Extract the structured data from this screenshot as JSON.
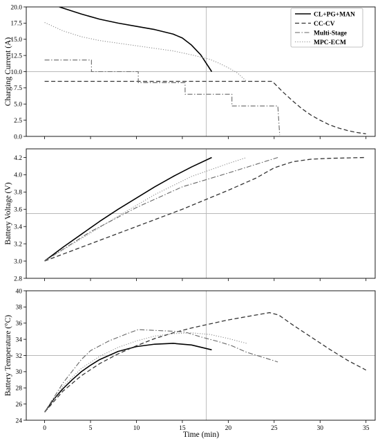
{
  "chart_data": {
    "type": "line",
    "xlabel": "Time (min)",
    "xlim": [
      -2,
      36
    ],
    "xticks": [
      0,
      5,
      10,
      15,
      20,
      25,
      30,
      35
    ],
    "reference_lines": {
      "x": 17.6
    },
    "legend": {
      "placement": "top-right",
      "entries": [
        {
          "name": "CL+PG+MAN",
          "style": "solid"
        },
        {
          "name": "CC-CV",
          "style": "dashed"
        },
        {
          "name": "Multi-Stage",
          "style": "dashdot"
        },
        {
          "name": "MPC-ECM",
          "style": "dotted"
        }
      ]
    },
    "panels": [
      {
        "id": "current",
        "ylabel": "Charging Current (A)",
        "ylim": [
          0,
          20
        ],
        "yticks": [
          0.0,
          2.5,
          5.0,
          7.5,
          10.0,
          12.5,
          15.0,
          17.5,
          20.0
        ],
        "ytick_decimals": 1,
        "reference_lines": {
          "y": 10.0
        },
        "series": [
          {
            "name": "CL+PG+MAN",
            "x": [
              1.6,
              4,
              6,
              8,
              10,
              12,
              14,
              15,
              16,
              17,
              18.2
            ],
            "y": [
              20.0,
              18.9,
              18.1,
              17.5,
              17.0,
              16.5,
              15.8,
              15.2,
              14.1,
              12.6,
              10.0
            ]
          },
          {
            "name": "CC-CV",
            "x": [
              0,
              5,
              10,
              15,
              20,
              24.8,
              25.5,
              26,
              27,
              28,
              29,
              30,
              31,
              32,
              33,
              34,
              35
            ],
            "y": [
              8.5,
              8.5,
              8.5,
              8.5,
              8.5,
              8.5,
              7.5,
              6.8,
              5.5,
              4.3,
              3.3,
              2.5,
              1.8,
              1.3,
              0.9,
              0.6,
              0.4
            ]
          },
          {
            "name": "Multi-Stage",
            "x": [
              0,
              5.1,
              5.1,
              10.2,
              10.2,
              15.3,
              15.3,
              20.4,
              20.4,
              25.4,
              25.6
            ],
            "y": [
              11.8,
              11.8,
              10.0,
              10.0,
              8.3,
              8.3,
              6.5,
              6.5,
              4.7,
              4.7,
              0.2
            ]
          },
          {
            "name": "MPC-ECM",
            "x": [
              0,
              2,
              4,
              6,
              8,
              10,
              12,
              14,
              16,
              18,
              19,
              20,
              21,
              22
            ],
            "y": [
              17.6,
              16.3,
              15.4,
              14.8,
              14.4,
              14.0,
              13.6,
              13.2,
              12.6,
              11.9,
              11.3,
              10.6,
              9.8,
              8.5
            ]
          }
        ]
      },
      {
        "id": "voltage",
        "ylabel": "Battery Voltage (V)",
        "ylim": [
          2.8,
          4.3
        ],
        "yticks": [
          2.8,
          3.0,
          3.2,
          3.4,
          3.6,
          3.8,
          4.0,
          4.2
        ],
        "ytick_decimals": 1,
        "reference_lines": {
          "y": 3.55
        },
        "series": [
          {
            "name": "CL+PG+MAN",
            "x": [
              0,
              2,
              4,
              6,
              8,
              10,
              12,
              14,
              16,
              18.2
            ],
            "y": [
              3.0,
              3.16,
              3.31,
              3.46,
              3.6,
              3.73,
              3.86,
              3.98,
              4.09,
              4.2
            ]
          },
          {
            "name": "CC-CV",
            "x": [
              0,
              5,
              10,
              15,
              20,
              23,
              25,
              27,
              29,
              31,
              33,
              35
            ],
            "y": [
              3.0,
              3.2,
              3.4,
              3.6,
              3.82,
              3.96,
              4.08,
              4.15,
              4.18,
              4.19,
              4.195,
              4.2
            ]
          },
          {
            "name": "Multi-Stage",
            "x": [
              0,
              5,
              10,
              15,
              20,
              25.4
            ],
            "y": [
              3.0,
              3.34,
              3.62,
              3.86,
              4.02,
              4.2
            ]
          },
          {
            "name": "MPC-ECM",
            "x": [
              0,
              4,
              8,
              12,
              16,
              20,
              22
            ],
            "y": [
              3.0,
              3.26,
              3.52,
              3.77,
              3.98,
              4.13,
              4.2
            ]
          }
        ]
      },
      {
        "id": "temperature",
        "ylabel": "Battery Temperature (°C)",
        "ylim": [
          24,
          40
        ],
        "yticks": [
          24,
          26,
          28,
          30,
          32,
          34,
          36,
          38,
          40
        ],
        "ytick_decimals": 0,
        "reference_lines": {
          "y": 32
        },
        "series": [
          {
            "name": "CL+PG+MAN",
            "x": [
              0,
              1,
              2,
              3,
              4,
              5,
              6,
              8,
              10,
              12,
              14,
              16,
              18.2
            ],
            "y": [
              25.0,
              26.6,
              27.9,
              29.0,
              30.0,
              30.8,
              31.5,
              32.5,
              33.1,
              33.4,
              33.5,
              33.3,
              32.7
            ]
          },
          {
            "name": "CC-CV",
            "x": [
              0,
              2,
              4,
              6,
              8,
              10,
              12,
              14,
              16,
              18,
              20,
              22,
              24.5,
              25.5,
              27,
              29,
              31,
              33,
              35
            ],
            "y": [
              25.0,
              27.6,
              29.5,
              31.0,
              32.2,
              33.2,
              34.1,
              34.8,
              35.4,
              35.9,
              36.4,
              36.8,
              37.3,
              37.0,
              35.8,
              34.3,
              32.8,
              31.4,
              30.2
            ]
          },
          {
            "name": "Multi-Stage",
            "x": [
              0,
              2,
              4,
              5,
              7,
              9,
              10.2,
              12,
              14,
              15.3,
              17,
              19,
              20.4,
              22,
              24,
              25.4
            ],
            "y": [
              25.0,
              28.6,
              31.5,
              32.6,
              33.8,
              34.7,
              35.2,
              35.1,
              35.0,
              34.9,
              34.3,
              33.7,
              33.2,
              32.4,
              31.7,
              31.2
            ]
          },
          {
            "name": "MPC-ECM",
            "x": [
              0,
              2,
              4,
              6,
              8,
              10,
              12,
              14,
              16,
              18,
              20,
              22
            ],
            "y": [
              25.0,
              28.2,
              30.4,
              31.9,
              33.0,
              33.8,
              34.4,
              34.7,
              34.8,
              34.6,
              34.1,
              33.5
            ]
          }
        ]
      }
    ]
  }
}
